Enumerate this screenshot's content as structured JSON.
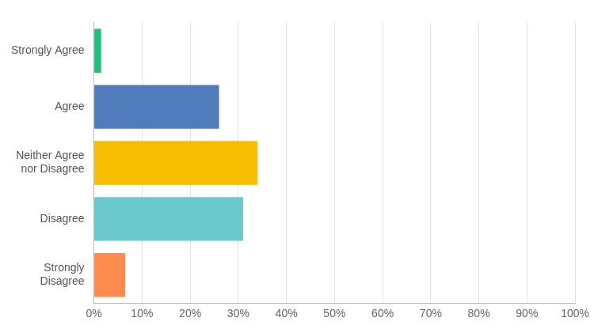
{
  "chart_data": {
    "type": "bar",
    "orientation": "horizontal",
    "categories": [
      "Strongly Agree",
      "Agree",
      "Neither Agree nor Disagree",
      "Disagree",
      "Strongly Disagree"
    ],
    "values": [
      1.5,
      26,
      34,
      31,
      6.5
    ],
    "colors": [
      "#1ec27b",
      "#507cbc",
      "#f8be00",
      "#6bc8cd",
      "#ff8b4f"
    ],
    "xlim": [
      0,
      100
    ],
    "xticks": [
      {
        "value": 0,
        "label": "0%"
      },
      {
        "value": 10,
        "label": "10%"
      },
      {
        "value": 20,
        "label": "20%"
      },
      {
        "value": 30,
        "label": "30%"
      },
      {
        "value": 40,
        "label": "40%"
      },
      {
        "value": 50,
        "label": "50%"
      },
      {
        "value": 60,
        "label": "60%"
      },
      {
        "value": 70,
        "label": "70%"
      },
      {
        "value": 80,
        "label": "80%"
      },
      {
        "value": 90,
        "label": "90%"
      },
      {
        "value": 100,
        "label": "100%"
      }
    ],
    "grid": true
  }
}
